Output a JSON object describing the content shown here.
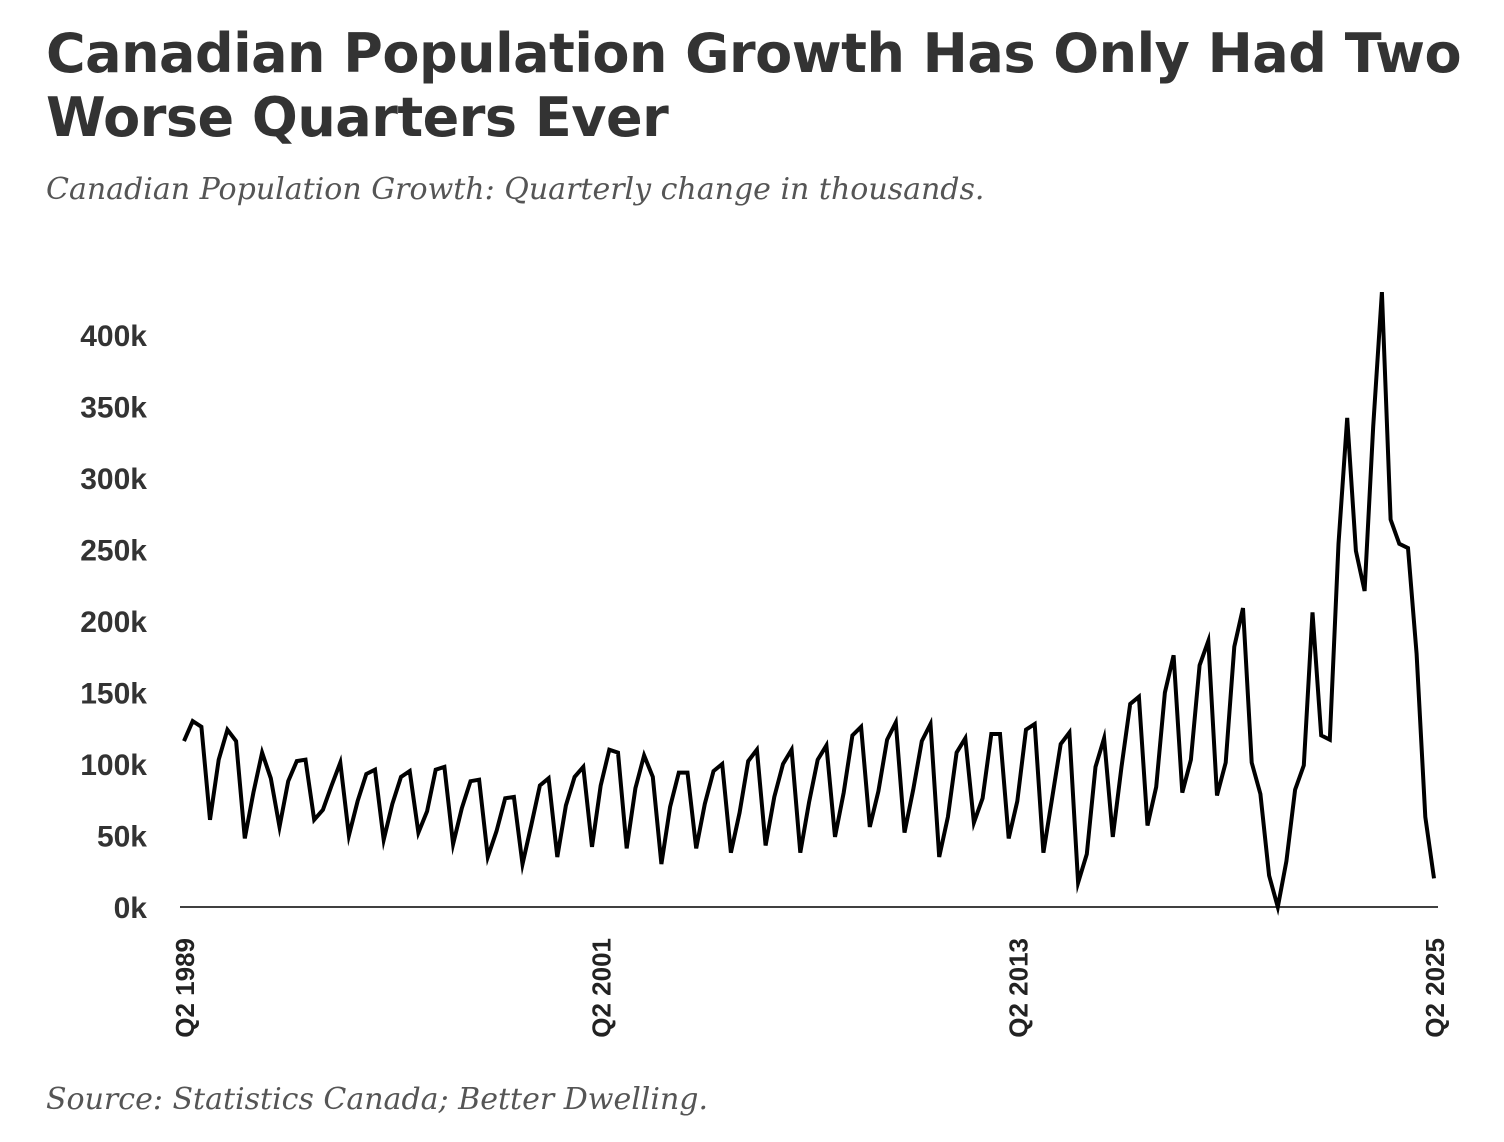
{
  "title": "Canadian Population Growth Has Only Had Two Worse Quarters Ever",
  "subtitle": "Canadian Population Growth: Quarterly change in thousands.",
  "source": "Source: Statistics Canada; Better Dwelling.",
  "colors": {
    "line": "#000000",
    "text": "#333333",
    "subtle_text": "#555555",
    "axis": "#000000"
  },
  "chart_data": {
    "type": "line",
    "title": "Canadian Population Growth Has Only Had Two Worse Quarters Ever",
    "subtitle": "Canadian Population Growth: Quarterly change in thousands.",
    "xlabel": "",
    "ylabel": "",
    "x_start": "Q2 1989",
    "x_end": "Q2 2025",
    "frequency": "quarterly",
    "ylim": [
      0,
      430
    ],
    "yticks": [
      0,
      50,
      100,
      150,
      200,
      250,
      300,
      350,
      400
    ],
    "ytick_labels": [
      "0k",
      "50k",
      "100k",
      "150k",
      "200k",
      "250k",
      "300k",
      "350k",
      "400k"
    ],
    "xticks": [
      "Q2 1989",
      "Q2 2001",
      "Q2 2013",
      "Q2 2025"
    ],
    "grid": false,
    "legend": "none",
    "series": [
      {
        "values": [
          116,
          130,
          126,
          61,
          103,
          124,
          116,
          48,
          80,
          108,
          90,
          56,
          88,
          102,
          103,
          61,
          68,
          85,
          101,
          50,
          74,
          93,
          96,
          47,
          72,
          91,
          95,
          52,
          67,
          96,
          98,
          44,
          69,
          88,
          89,
          35,
          53,
          76,
          77,
          30,
          57,
          85,
          90,
          35,
          71,
          91,
          98,
          42,
          85,
          110,
          108,
          41,
          83,
          106,
          91,
          30,
          70,
          94,
          94,
          41,
          72,
          95,
          100,
          38,
          66,
          102,
          110,
          43,
          77,
          100,
          110,
          38,
          73,
          103,
          113,
          49,
          80,
          120,
          126,
          56,
          81,
          117,
          129,
          52,
          82,
          116,
          128,
          35,
          63,
          108,
          118,
          59,
          76,
          121,
          121,
          48,
          74,
          124,
          128,
          38,
          76,
          114,
          122,
          17,
          37,
          98,
          118,
          49,
          98,
          142,
          147,
          57,
          84,
          150,
          176,
          80,
          103,
          169,
          186,
          78,
          101,
          182,
          209,
          101,
          79,
          22,
          0,
          32,
          82,
          99,
          206,
          120,
          117,
          254,
          342,
          249,
          221,
          336,
          430,
          271,
          254,
          251,
          177,
          63,
          20
        ]
      }
    ]
  }
}
